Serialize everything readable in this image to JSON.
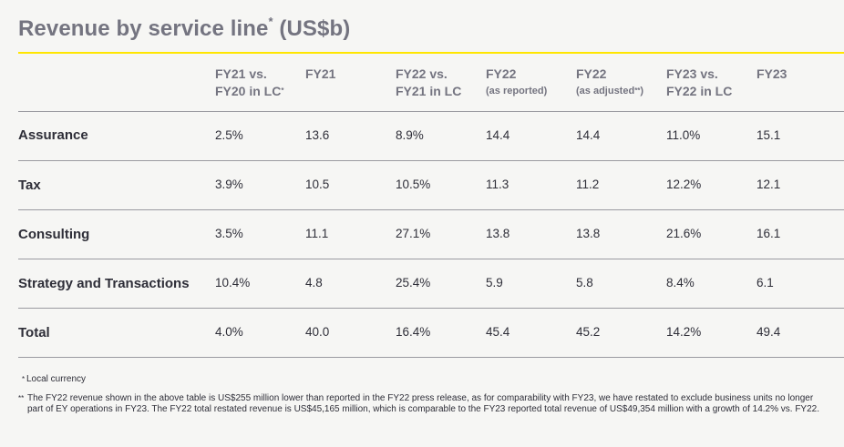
{
  "title": {
    "text": "Revenue by service line",
    "marker": "*",
    "unit": " (US$b)"
  },
  "columns": [
    {
      "line1": "FY21 vs.",
      "line2": "FY20 in LC",
      "line2_mark": "*",
      "small": false
    },
    {
      "line1": "FY21",
      "line2": "",
      "line2_mark": "",
      "small": false
    },
    {
      "line1": "FY22 vs.",
      "line2": "FY21 in LC",
      "line2_mark": "",
      "small": false
    },
    {
      "line1": "FY22",
      "line2": "(as reported)",
      "line2_mark": "",
      "small": true
    },
    {
      "line1": "FY22",
      "line2": "(as adjusted",
      "line2_mark": "**",
      "line2_tail": ")",
      "small": true
    },
    {
      "line1": "FY23 vs.",
      "line2": "FY22 in LC",
      "line2_mark": "",
      "small": false
    },
    {
      "line1": "FY23",
      "line2": "",
      "line2_mark": "",
      "small": false
    }
  ],
  "rows": [
    {
      "label": "Assurance",
      "values": [
        "2.5%",
        "13.6",
        "8.9%",
        "14.4",
        "14.4",
        "11.0%",
        "15.1"
      ]
    },
    {
      "label": "Tax",
      "values": [
        "3.9%",
        "10.5",
        "10.5%",
        "11.3",
        "11.2",
        "12.2%",
        "12.1"
      ]
    },
    {
      "label": "Consulting",
      "values": [
        "3.5%",
        "11.1",
        "27.1%",
        "13.8",
        "13.8",
        "21.6%",
        "16.1"
      ]
    },
    {
      "label": "Strategy and Transactions",
      "values": [
        "10.4%",
        "4.8",
        "25.4%",
        "5.9",
        "5.8",
        "8.4%",
        "6.1"
      ]
    },
    {
      "label": "Total",
      "values": [
        "4.0%",
        "40.0",
        "16.4%",
        "45.4",
        "45.2",
        "14.2%",
        "49.4"
      ]
    }
  ],
  "footnotes": [
    {
      "mark": "*",
      "text": "Local currency"
    },
    {
      "mark": "**",
      "text": "The FY22 revenue shown in the above table is US$255 million lower than reported in the FY22 press release, as for comparability with FY23, we have restated to exclude business units no longer part of EY operations in FY23. The FY22 total restated revenue is US$45,165 million, which is comparable to the FY23 reported total revenue of US$49,354 million with a growth of 14.2% vs. FY22."
    }
  ],
  "colors": {
    "accent": "#ffe600",
    "heading": "#747480",
    "text": "#2e2e38"
  }
}
